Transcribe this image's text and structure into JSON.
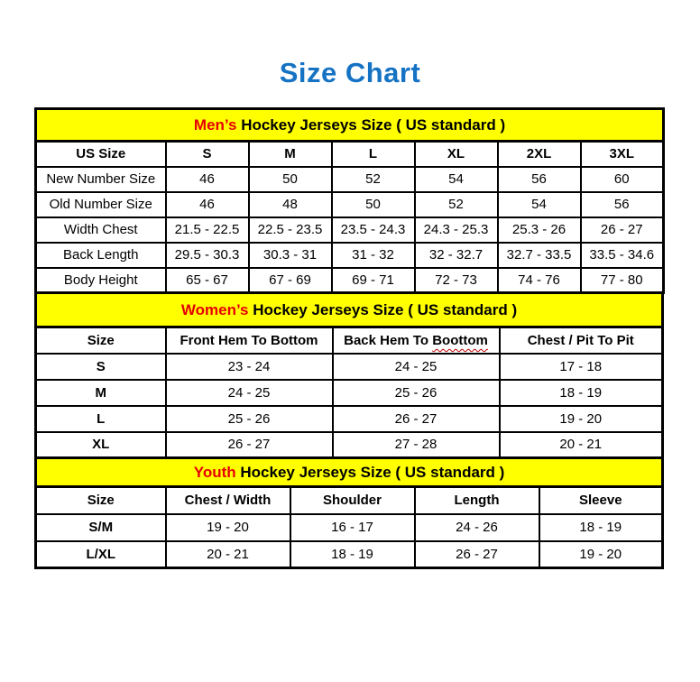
{
  "page": {
    "title": "Size Chart",
    "title_color": "#1673c4",
    "banner_bg": "#ffff00",
    "highlight_color": "#e60000"
  },
  "tables": [
    {
      "id": "mens",
      "banner_highlight": "Men’s",
      "banner_rest": " Hockey Jerseys Size ( US standard )",
      "columns": [
        {
          "label": "US Size"
        },
        {
          "label": "S"
        },
        {
          "label": "M"
        },
        {
          "label": "L"
        },
        {
          "label": "XL"
        },
        {
          "label": "2XL"
        },
        {
          "label": "3XL"
        }
      ],
      "rows": [
        {
          "label": "New Number Size",
          "values": [
            "46",
            "50",
            "52",
            "54",
            "56",
            "60"
          ]
        },
        {
          "label": "Old Number Size",
          "values": [
            "46",
            "48",
            "50",
            "52",
            "54",
            "56"
          ]
        },
        {
          "label": "Width Chest",
          "values": [
            "21.5 - 22.5",
            "22.5 - 23.5",
            "23.5 - 24.3",
            "24.3 - 25.3",
            "25.3 - 26",
            "26 - 27"
          ]
        },
        {
          "label": "Back Length",
          "values": [
            "29.5 - 30.3",
            "30.3 - 31",
            "31 - 32",
            "32 - 32.7",
            "32.7 - 33.5",
            "33.5 - 34.6"
          ]
        },
        {
          "label": "Body Height",
          "values": [
            "65 - 67",
            "67 - 69",
            "69 - 71",
            "72 - 73",
            "74 - 76",
            "77 - 80"
          ]
        }
      ]
    },
    {
      "id": "womens",
      "banner_highlight": "Women’s",
      "banner_rest": " Hockey Jerseys Size ( US standard )",
      "columns": [
        {
          "label": "Size"
        },
        {
          "label": "Front Hem To Bottom"
        },
        {
          "label": "Back Hem To ",
          "squiggle": "Boottom"
        },
        {
          "label": "Chest / Pit To Pit"
        }
      ],
      "rows": [
        {
          "label": "S",
          "values": [
            "23 - 24",
            "24 - 25",
            "17 - 18"
          ]
        },
        {
          "label": "M",
          "values": [
            "24 - 25",
            "25 - 26",
            "18 - 19"
          ]
        },
        {
          "label": "L",
          "values": [
            "25 - 26",
            "26 - 27",
            "19 - 20"
          ]
        },
        {
          "label": "XL",
          "values": [
            "26 - 27",
            "27 - 28",
            "20 - 21"
          ]
        }
      ]
    },
    {
      "id": "youth",
      "banner_highlight": "Youth",
      "banner_rest": " Hockey Jerseys Size ( US standard )",
      "columns": [
        {
          "label": "Size"
        },
        {
          "label": "Chest / Width"
        },
        {
          "label": "Shoulder"
        },
        {
          "label": "Length"
        },
        {
          "label": "Sleeve"
        }
      ],
      "rows": [
        {
          "label": "S/M",
          "values": [
            "19 - 20",
            "16 - 17",
            "24 - 26",
            "18 - 19"
          ]
        },
        {
          "label": "L/XL",
          "values": [
            "20 - 21",
            "18 - 19",
            "26 - 27",
            "19 - 20"
          ]
        }
      ]
    }
  ]
}
